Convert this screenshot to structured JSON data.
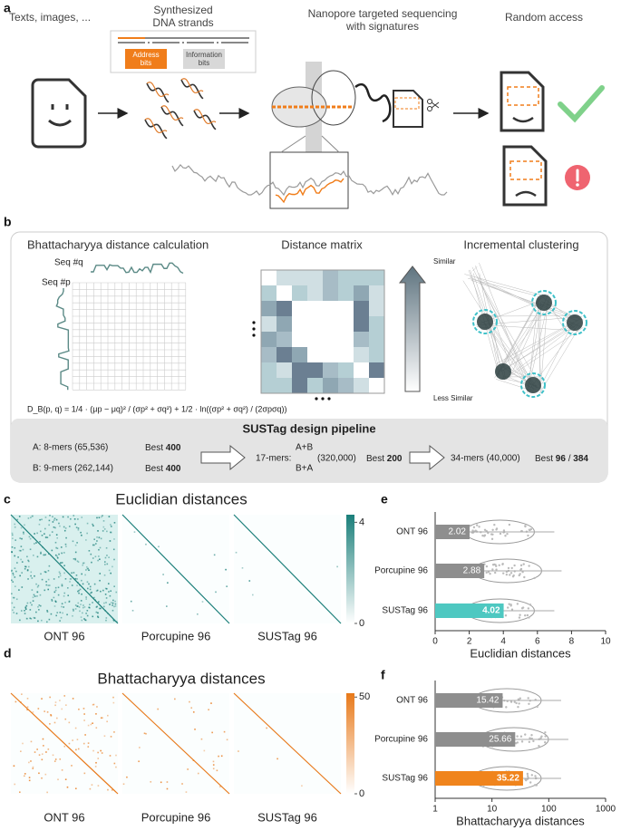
{
  "panels": {
    "a": {
      "label": "a",
      "input": "Texts, images, ...",
      "synthesis": [
        "Synthesized",
        "DNA strands"
      ],
      "address_bits": [
        "Address",
        "bits"
      ],
      "information_bits": [
        "Information",
        "bits"
      ],
      "sequencing": [
        "Nanopore targeted sequencing",
        "with signatures"
      ],
      "random_access": "Random access"
    },
    "b": {
      "label": "b",
      "distance_title": "Bhattacharyya distance calculation",
      "seq_q": "Seq #q",
      "seq_p": "Seq #p",
      "formula": "D_B(p, q) = 1/4 · (μp − μq)² / (σp² + σq²) + 1/2 · ln((σp² + σq²) / (2σpσq))",
      "matrix_title": "Distance matrix",
      "similar": "Similar",
      "less_similar": "Less Similar",
      "clustering_title": "Incremental clustering",
      "pipeline": {
        "title": "SUSTag design pipeline",
        "a_set": "A: 8-mers (65,536)",
        "b_set": "B: 9-mers (262,144)",
        "best": "Best",
        "a_best": "400",
        "b_best": "400",
        "mers17": "17-mers:",
        "ab": "A+B",
        "ba": "B+A",
        "count17": "(320,000)",
        "best17": "200",
        "mers34": "34-mers (40,000)",
        "best34": [
          "96",
          "384"
        ],
        "separator": "/"
      }
    },
    "c": {
      "label": "c"
    },
    "d": {
      "label": "d"
    },
    "e": {
      "label": "e"
    },
    "f": {
      "label": "f"
    }
  },
  "chart_data": [
    {
      "type": "heatmap",
      "title": "Euclidian distances",
      "categories": [
        "ONT 96",
        "Porcupine 96",
        "SUSTag 96"
      ],
      "clim": [
        0,
        4.3
      ],
      "colorbar_ticks": [
        0,
        4
      ],
      "colors": [
        "#ffffff",
        "#1b7f7a"
      ]
    },
    {
      "type": "heatmap",
      "title": "Bhattacharyya distances",
      "categories": [
        "ONT 96",
        "Porcupine 96",
        "SUSTag 96"
      ],
      "clim": [
        0,
        52
      ],
      "colorbar_ticks": [
        0,
        50
      ],
      "colors": [
        "#ffffff",
        "#e8791a"
      ]
    },
    {
      "type": "hbar",
      "categories": [
        "ONT 96",
        "Porcupine 96",
        "SUSTag 96"
      ],
      "values": [
        2.02,
        2.88,
        4.02
      ],
      "colors": [
        "#8e8e8e",
        "#8e8e8e",
        "#4ec8c1"
      ],
      "xlim": [
        0,
        10
      ],
      "xticks": [
        0,
        2,
        4,
        6,
        8,
        10
      ],
      "xlabel": "Euclidian distances"
    },
    {
      "type": "hbar",
      "categories": [
        "ONT 96",
        "Porcupine 96",
        "SUSTag 96"
      ],
      "values": [
        15.42,
        25.66,
        35.22
      ],
      "colors": [
        "#8e8e8e",
        "#8e8e8e",
        "#f0841c"
      ],
      "xscale": "log",
      "xlim": [
        1,
        1000
      ],
      "xticks": [
        1,
        10,
        100,
        1000
      ],
      "xlabel": "Bhattacharyya distances"
    }
  ]
}
